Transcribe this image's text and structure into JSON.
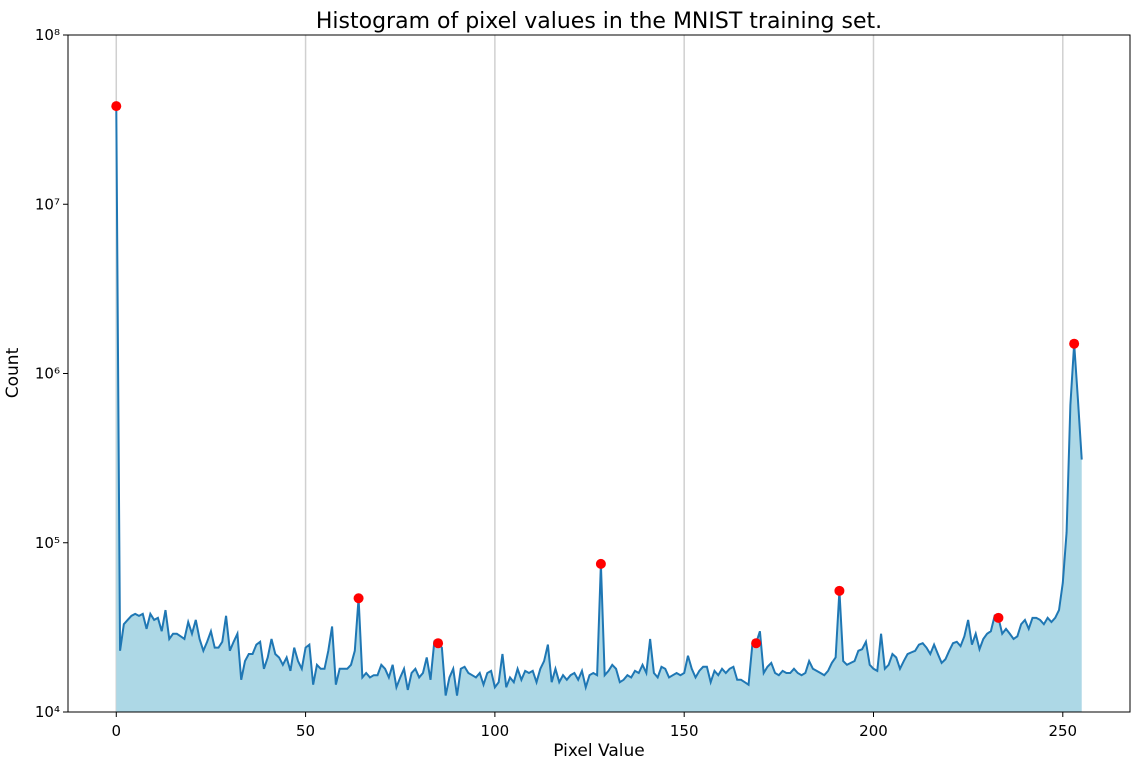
{
  "chart_data": {
    "type": "line",
    "title": "Histogram of pixel values in the MNIST training set.",
    "xlabel": "Pixel Value",
    "ylabel": "Count",
    "log_y": true,
    "grid": "x",
    "xlim": [
      -12.75,
      267.75
    ],
    "xticks": [
      0,
      50,
      100,
      150,
      200,
      250
    ],
    "ylim": [
      10000,
      100000000
    ],
    "yticks": [
      {
        "value": 10000,
        "label": "10⁴"
      },
      {
        "value": 100000,
        "label": "10⁵"
      },
      {
        "value": 1000000,
        "label": "10⁶"
      },
      {
        "value": 10000000,
        "label": "10⁷"
      },
      {
        "value": 100000000,
        "label": "10⁸"
      }
    ],
    "series": [
      {
        "color": "#1f77b4",
        "fill": "#add8e6",
        "x": [
          0,
          1,
          2,
          3,
          4,
          5,
          6,
          7,
          8,
          9,
          10,
          11,
          12,
          13,
          14,
          15,
          16,
          17,
          18,
          19,
          20,
          21,
          22,
          23,
          24,
          25,
          26,
          27,
          28,
          29,
          30,
          31,
          32,
          33,
          34,
          35,
          36,
          37,
          38,
          39,
          40,
          41,
          42,
          43,
          44,
          45,
          46,
          47,
          48,
          49,
          50,
          51,
          52,
          53,
          54,
          55,
          56,
          57,
          58,
          59,
          60,
          61,
          62,
          63,
          64,
          65,
          66,
          67,
          68,
          69,
          70,
          71,
          72,
          73,
          74,
          75,
          76,
          77,
          78,
          79,
          80,
          81,
          82,
          83,
          84,
          85,
          86,
          87,
          88,
          89,
          90,
          91,
          92,
          93,
          94,
          95,
          96,
          97,
          98,
          99,
          100,
          101,
          102,
          103,
          104,
          105,
          106,
          107,
          108,
          109,
          110,
          111,
          112,
          113,
          114,
          115,
          116,
          117,
          118,
          119,
          120,
          121,
          122,
          123,
          124,
          125,
          126,
          127,
          128,
          129,
          130,
          131,
          132,
          133,
          134,
          135,
          136,
          137,
          138,
          139,
          140,
          141,
          142,
          143,
          144,
          145,
          146,
          147,
          148,
          149,
          150,
          151,
          152,
          153,
          154,
          155,
          156,
          157,
          158,
          159,
          160,
          161,
          162,
          163,
          164,
          165,
          166,
          167,
          168,
          169,
          170,
          171,
          172,
          173,
          174,
          175,
          176,
          177,
          178,
          179,
          180,
          181,
          182,
          183,
          184,
          185,
          186,
          187,
          188,
          189,
          190,
          191,
          192,
          193,
          194,
          195,
          196,
          197,
          198,
          199,
          200,
          201,
          202,
          203,
          204,
          205,
          206,
          207,
          208,
          209,
          210,
          211,
          212,
          213,
          214,
          215,
          216,
          217,
          218,
          219,
          220,
          221,
          222,
          223,
          224,
          225,
          226,
          227,
          228,
          229,
          230,
          231,
          232,
          233,
          234,
          235,
          236,
          237,
          238,
          239,
          240,
          241,
          242,
          243,
          244,
          245,
          246,
          247,
          248,
          249,
          250,
          251,
          252,
          253,
          254,
          255
        ],
        "values": [
          38000000,
          23000,
          33000,
          35000,
          37000,
          38000,
          37000,
          38000,
          31000,
          38000,
          35000,
          36000,
          30000,
          40000,
          27000,
          29000,
          29000,
          28000,
          27000,
          34000,
          29000,
          35000,
          27000,
          23000,
          26000,
          30000,
          24000,
          24000,
          26000,
          37000,
          23000,
          26000,
          29000,
          15500,
          20000,
          22000,
          22000,
          25000,
          26000,
          18000,
          21000,
          27000,
          22000,
          21000,
          19000,
          21000,
          17500,
          24000,
          20000,
          18000,
          24000,
          25000,
          14500,
          19000,
          18000,
          18000,
          23000,
          32000,
          14500,
          18000,
          18000,
          18000,
          19000,
          23000,
          47000,
          16000,
          17000,
          16000,
          16500,
          16500,
          19000,
          18000,
          16000,
          19000,
          14000,
          16000,
          18000,
          13500,
          17000,
          18000,
          16000,
          17000,
          21000,
          15500,
          26000,
          25500,
          24000,
          12500,
          16000,
          18000,
          12500,
          18000,
          18500,
          17000,
          16500,
          16000,
          17000,
          14500,
          17000,
          17500,
          14000,
          15000,
          22000,
          14000,
          16000,
          15000,
          18000,
          15500,
          17500,
          17000,
          17500,
          15000,
          18000,
          20000,
          25000,
          15000,
          18000,
          15000,
          16500,
          15500,
          16500,
          17000,
          15500,
          17500,
          14000,
          16500,
          17000,
          16500,
          75000,
          16500,
          17500,
          19000,
          18000,
          15000,
          15500,
          16500,
          16000,
          17500,
          17000,
          19000,
          17000,
          27000,
          17000,
          16000,
          18500,
          18000,
          16000,
          16500,
          17000,
          16500,
          17000,
          21500,
          18000,
          16000,
          17500,
          18500,
          18500,
          15000,
          17500,
          16500,
          18000,
          17000,
          18000,
          18500,
          15500,
          15500,
          15000,
          14500,
          25000,
          25500,
          30000,
          17000,
          18500,
          19500,
          17000,
          16500,
          17500,
          17000,
          17000,
          18000,
          17000,
          16500,
          17000,
          20000,
          18000,
          17500,
          17000,
          16500,
          17500,
          19500,
          21000,
          52000,
          20000,
          19000,
          19500,
          20000,
          23000,
          23500,
          26000,
          19000,
          18000,
          17500,
          29000,
          18000,
          19000,
          22000,
          21000,
          18000,
          20000,
          22000,
          22500,
          23000,
          25000,
          25500,
          24000,
          22000,
          25000,
          22000,
          19500,
          20500,
          23000,
          25500,
          26000,
          24500,
          28000,
          35000,
          25000,
          29000,
          23500,
          27000,
          29000,
          30000,
          37000,
          36000,
          29000,
          31000,
          29000,
          27000,
          28000,
          33000,
          35000,
          31000,
          36000,
          36000,
          35000,
          33000,
          36000,
          34000,
          36000,
          40000,
          58000,
          115000,
          650000,
          1500000,
          700000,
          310000
        ]
      },
      {
        "color": "#ff0000",
        "x": [
          0,
          64,
          85,
          128,
          169,
          191,
          233,
          253
        ],
        "values": [
          38000000,
          47000,
          25500,
          75000,
          25500,
          52000,
          36000,
          1500000
        ]
      }
    ]
  }
}
